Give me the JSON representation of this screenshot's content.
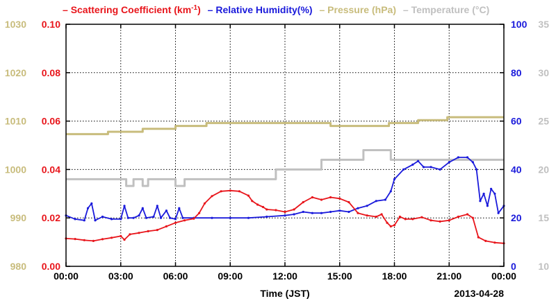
{
  "chart_data": {
    "type": "line",
    "xlabel": "Time (JST)",
    "date_label": "2013-04-28",
    "x_ticks": [
      "00:00",
      "03:00",
      "06:00",
      "09:00",
      "12:00",
      "15:00",
      "18:00",
      "21:00",
      "00:00"
    ],
    "x_tick_hours": [
      0,
      3,
      6,
      9,
      12,
      15,
      18,
      21,
      24
    ],
    "xlim_hours": [
      0,
      24
    ],
    "grid": true,
    "legend": {
      "placement": "top",
      "items": [
        {
          "dash": "–",
          "text": "Scattering Coefficient (km",
          "sup": "-1",
          "tail": ")",
          "color": "#e8151b"
        },
        {
          "dash": "–",
          "text": "Relative Humidity(%)",
          "color": "#1a1adb"
        },
        {
          "dash": "–",
          "text": "Pressure (hPa)",
          "color": "#c8bc7c"
        },
        {
          "dash": "–",
          "text": "Temperature (°C)",
          "color": "#c0c0c0"
        }
      ]
    },
    "axes": {
      "pressure": {
        "side": "left-outer",
        "color": "#c8bc7c",
        "range": [
          980,
          1030
        ],
        "ticks": [
          "980",
          "990",
          "1000",
          "1010",
          "1020",
          "1030"
        ]
      },
      "scattering": {
        "side": "left-inner",
        "color": "#e8151b",
        "range": [
          0,
          0.1
        ],
        "ticks": [
          "0.00",
          "0.02",
          "0.04",
          "0.06",
          "0.08",
          "0.10"
        ]
      },
      "humidity": {
        "side": "right-inner",
        "color": "#1a1adb",
        "range": [
          0,
          100
        ],
        "ticks": [
          "0",
          "20",
          "40",
          "60",
          "80",
          "100"
        ]
      },
      "temperature": {
        "side": "right-outer",
        "color": "#c0c0c0",
        "range": [
          10,
          35
        ],
        "ticks": [
          "10",
          "15",
          "20",
          "25",
          "30",
          "35"
        ]
      }
    },
    "series": [
      {
        "name": "Scattering Coefficient (km-1)",
        "axis": "scattering",
        "color": "#e8151b",
        "points": [
          [
            0,
            0.0115
          ],
          [
            0.5,
            0.0113
          ],
          [
            1,
            0.0108
          ],
          [
            1.5,
            0.0105
          ],
          [
            2,
            0.0112
          ],
          [
            2.5,
            0.0118
          ],
          [
            3,
            0.0125
          ],
          [
            3.2,
            0.011
          ],
          [
            3.5,
            0.0132
          ],
          [
            4,
            0.0138
          ],
          [
            4.5,
            0.0145
          ],
          [
            5,
            0.015
          ],
          [
            5.5,
            0.0165
          ],
          [
            6,
            0.018
          ],
          [
            6.5,
            0.019
          ],
          [
            7,
            0.0197
          ],
          [
            7.3,
            0.022
          ],
          [
            7.6,
            0.026
          ],
          [
            8,
            0.029
          ],
          [
            8.5,
            0.031
          ],
          [
            9,
            0.0313
          ],
          [
            9.5,
            0.031
          ],
          [
            10,
            0.0292
          ],
          [
            10.2,
            0.027
          ],
          [
            10.5,
            0.0255
          ],
          [
            10.8,
            0.0245
          ],
          [
            11,
            0.0235
          ],
          [
            11.5,
            0.0232
          ],
          [
            12,
            0.0225
          ],
          [
            12.5,
            0.0235
          ],
          [
            13,
            0.0265
          ],
          [
            13.5,
            0.0285
          ],
          [
            14,
            0.0275
          ],
          [
            14.5,
            0.0285
          ],
          [
            15,
            0.028
          ],
          [
            15.5,
            0.0265
          ],
          [
            16,
            0.022
          ],
          [
            16.5,
            0.021
          ],
          [
            17,
            0.0205
          ],
          [
            17.3,
            0.0215
          ],
          [
            17.6,
            0.018
          ],
          [
            17.8,
            0.0165
          ],
          [
            18,
            0.017
          ],
          [
            18.3,
            0.0205
          ],
          [
            18.6,
            0.0195
          ],
          [
            19,
            0.0195
          ],
          [
            19.5,
            0.0203
          ],
          [
            20,
            0.019
          ],
          [
            20.5,
            0.0185
          ],
          [
            21,
            0.019
          ],
          [
            21.5,
            0.0205
          ],
          [
            22,
            0.0215
          ],
          [
            22.3,
            0.02
          ],
          [
            22.6,
            0.012
          ],
          [
            23,
            0.0105
          ],
          [
            23.5,
            0.0098
          ],
          [
            24,
            0.0095
          ]
        ]
      },
      {
        "name": "Relative Humidity(%)",
        "axis": "humidity",
        "color": "#1a1adb",
        "points": [
          [
            0,
            21
          ],
          [
            0.5,
            19.5
          ],
          [
            1,
            19
          ],
          [
            1.2,
            24
          ],
          [
            1.4,
            26
          ],
          [
            1.6,
            19
          ],
          [
            2,
            20.5
          ],
          [
            2.5,
            19.5
          ],
          [
            3,
            19.5
          ],
          [
            3.2,
            25
          ],
          [
            3.4,
            20
          ],
          [
            3.7,
            20
          ],
          [
            4,
            21
          ],
          [
            4.2,
            24
          ],
          [
            4.4,
            20
          ],
          [
            4.8,
            20.5
          ],
          [
            5,
            25
          ],
          [
            5.2,
            20
          ],
          [
            5.5,
            23
          ],
          [
            5.7,
            20
          ],
          [
            6,
            19.5
          ],
          [
            6.2,
            24
          ],
          [
            6.4,
            20
          ],
          [
            7,
            20
          ],
          [
            8,
            20
          ],
          [
            9,
            20
          ],
          [
            10,
            20
          ],
          [
            11,
            20.5
          ],
          [
            12,
            21
          ],
          [
            12.5,
            21.5
          ],
          [
            13,
            22.5
          ],
          [
            13.5,
            22
          ],
          [
            14,
            22
          ],
          [
            14.5,
            22.5
          ],
          [
            15,
            23
          ],
          [
            15.5,
            22.5
          ],
          [
            16,
            24
          ],
          [
            16.5,
            25
          ],
          [
            17,
            27
          ],
          [
            17.5,
            27.5
          ],
          [
            17.8,
            31
          ],
          [
            18,
            36
          ],
          [
            18.5,
            40
          ],
          [
            19,
            42
          ],
          [
            19.3,
            43.5
          ],
          [
            19.6,
            41
          ],
          [
            20,
            41
          ],
          [
            20.5,
            40
          ],
          [
            21,
            43
          ],
          [
            21.5,
            45
          ],
          [
            22,
            45
          ],
          [
            22.3,
            43
          ],
          [
            22.5,
            40
          ],
          [
            22.7,
            27
          ],
          [
            22.9,
            30
          ],
          [
            23.1,
            25
          ],
          [
            23.3,
            32
          ],
          [
            23.5,
            30
          ],
          [
            23.7,
            22
          ],
          [
            24,
            25
          ]
        ]
      },
      {
        "name": "Pressure (hPa)",
        "axis": "pressure",
        "color": "#c8bc7c",
        "points": [
          [
            0,
            1007.3
          ],
          [
            2.3,
            1007.3
          ],
          [
            2.3,
            1007.8
          ],
          [
            4.2,
            1007.8
          ],
          [
            4.2,
            1008.4
          ],
          [
            6,
            1008.4
          ],
          [
            6,
            1009.0
          ],
          [
            7.7,
            1009.0
          ],
          [
            7.7,
            1009.6
          ],
          [
            14.5,
            1009.6
          ],
          [
            14.5,
            1009.0
          ],
          [
            17.7,
            1009.0
          ],
          [
            17.7,
            1009.6
          ],
          [
            19.3,
            1009.6
          ],
          [
            19.3,
            1010.2
          ],
          [
            20.9,
            1010.2
          ],
          [
            20.9,
            1010.8
          ],
          [
            24,
            1010.8
          ]
        ]
      },
      {
        "name": "Temperature (°C)",
        "axis": "temperature",
        "color": "#c0c0c0",
        "points": [
          [
            0,
            19
          ],
          [
            3.3,
            19
          ],
          [
            3.3,
            18.3
          ],
          [
            3.7,
            18.3
          ],
          [
            3.7,
            19
          ],
          [
            4.2,
            19
          ],
          [
            4.2,
            18.3
          ],
          [
            4.5,
            18.3
          ],
          [
            4.5,
            19
          ],
          [
            6,
            19
          ],
          [
            6,
            18.3
          ],
          [
            6.5,
            18.3
          ],
          [
            6.5,
            19
          ],
          [
            11.5,
            19
          ],
          [
            11.5,
            20
          ],
          [
            14,
            20
          ],
          [
            14,
            21
          ],
          [
            16.3,
            21
          ],
          [
            16.3,
            22
          ],
          [
            17.8,
            22
          ],
          [
            17.8,
            21
          ],
          [
            24,
            21
          ]
        ]
      }
    ]
  }
}
